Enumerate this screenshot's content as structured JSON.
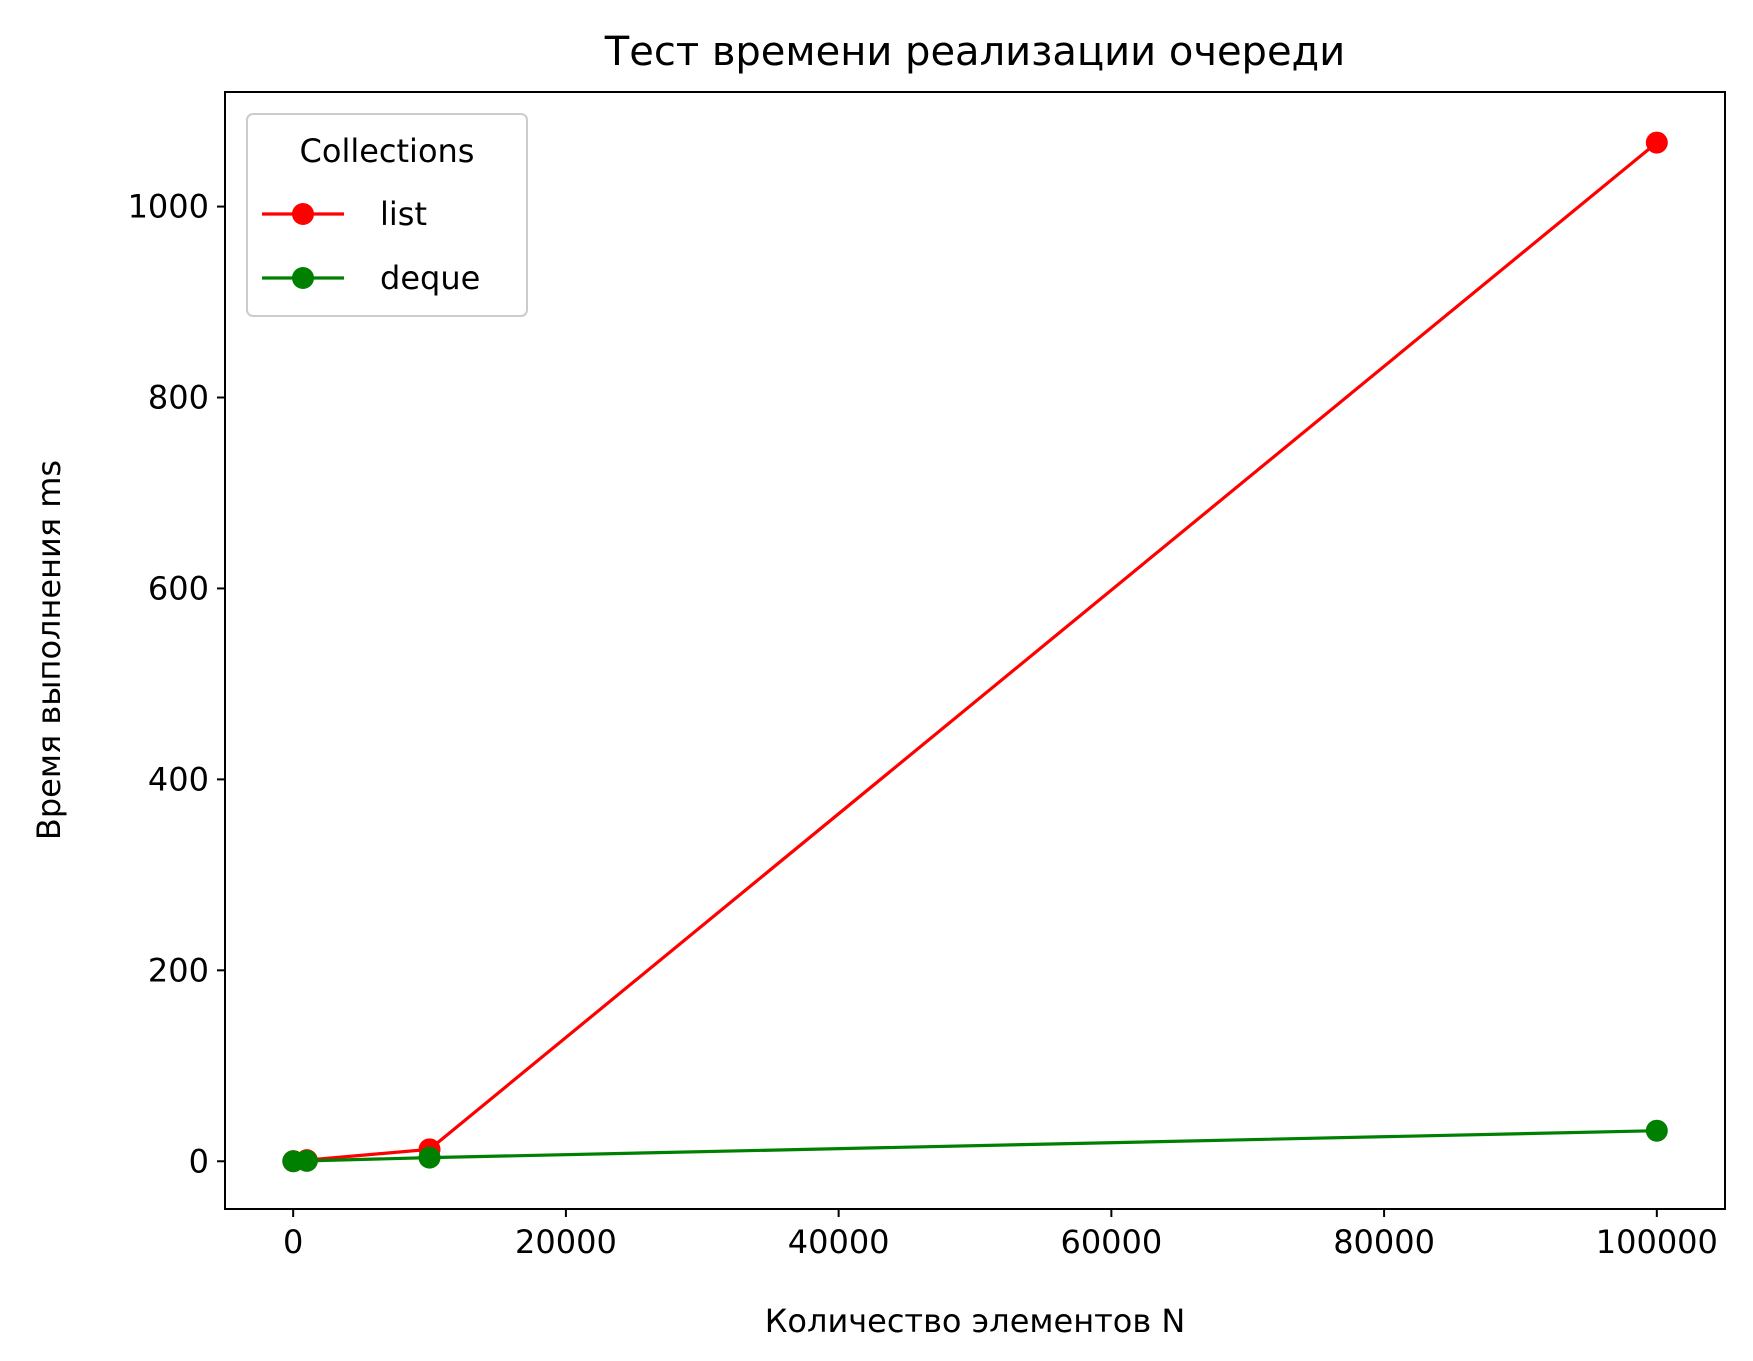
{
  "chart_data": {
    "type": "line",
    "title": "Тест времени реализации очереди",
    "xlabel": "Количество элементов N",
    "ylabel": "Время выполнения ms",
    "x": [
      10,
      1000,
      10000,
      100000
    ],
    "xlim": [
      -5000,
      105000
    ],
    "ylim": [
      -50,
      1120
    ],
    "xticks": [
      0,
      20000,
      40000,
      60000,
      80000,
      100000
    ],
    "yticks": [
      0,
      200,
      400,
      600,
      800,
      1000
    ],
    "grid": false,
    "legend": {
      "title": "Collections",
      "placement": "upper left"
    },
    "series": [
      {
        "name": "list",
        "color": "#ff0000",
        "marker": "circle",
        "values": [
          0.1,
          1.2,
          12.5,
          1067
        ]
      },
      {
        "name": "deque",
        "color": "#008000",
        "marker": "circle",
        "values": [
          0.05,
          0.4,
          3.8,
          32
        ]
      }
    ]
  }
}
